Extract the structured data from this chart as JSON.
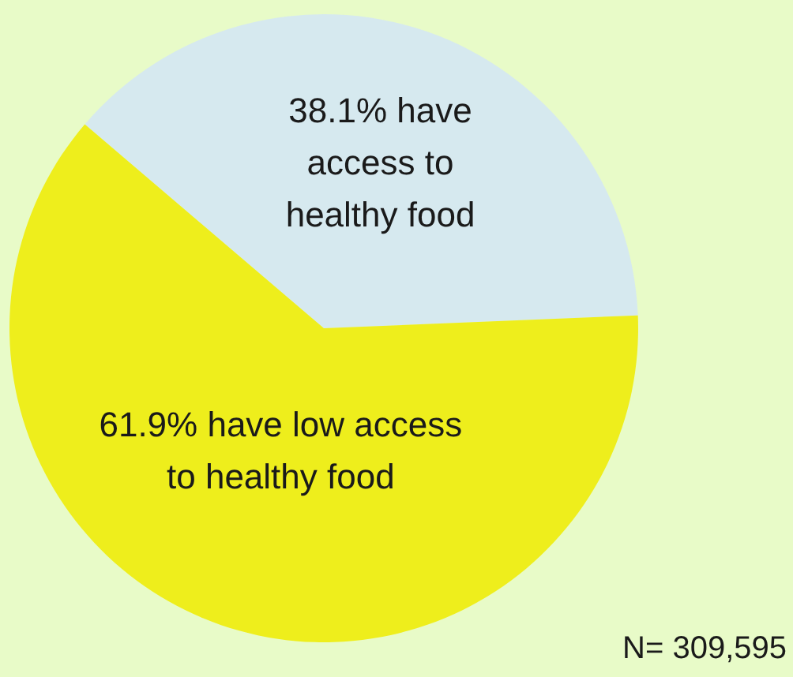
{
  "chart_data": {
    "type": "pie",
    "categories": [
      "38.1% have access to healthy food",
      "61.9% have low access to healthy food"
    ],
    "values": [
      38.1,
      61.9
    ],
    "colors": [
      "#d6e9ef",
      "#eeee1c"
    ],
    "annotations": [
      "N= 309,595"
    ]
  }
}
